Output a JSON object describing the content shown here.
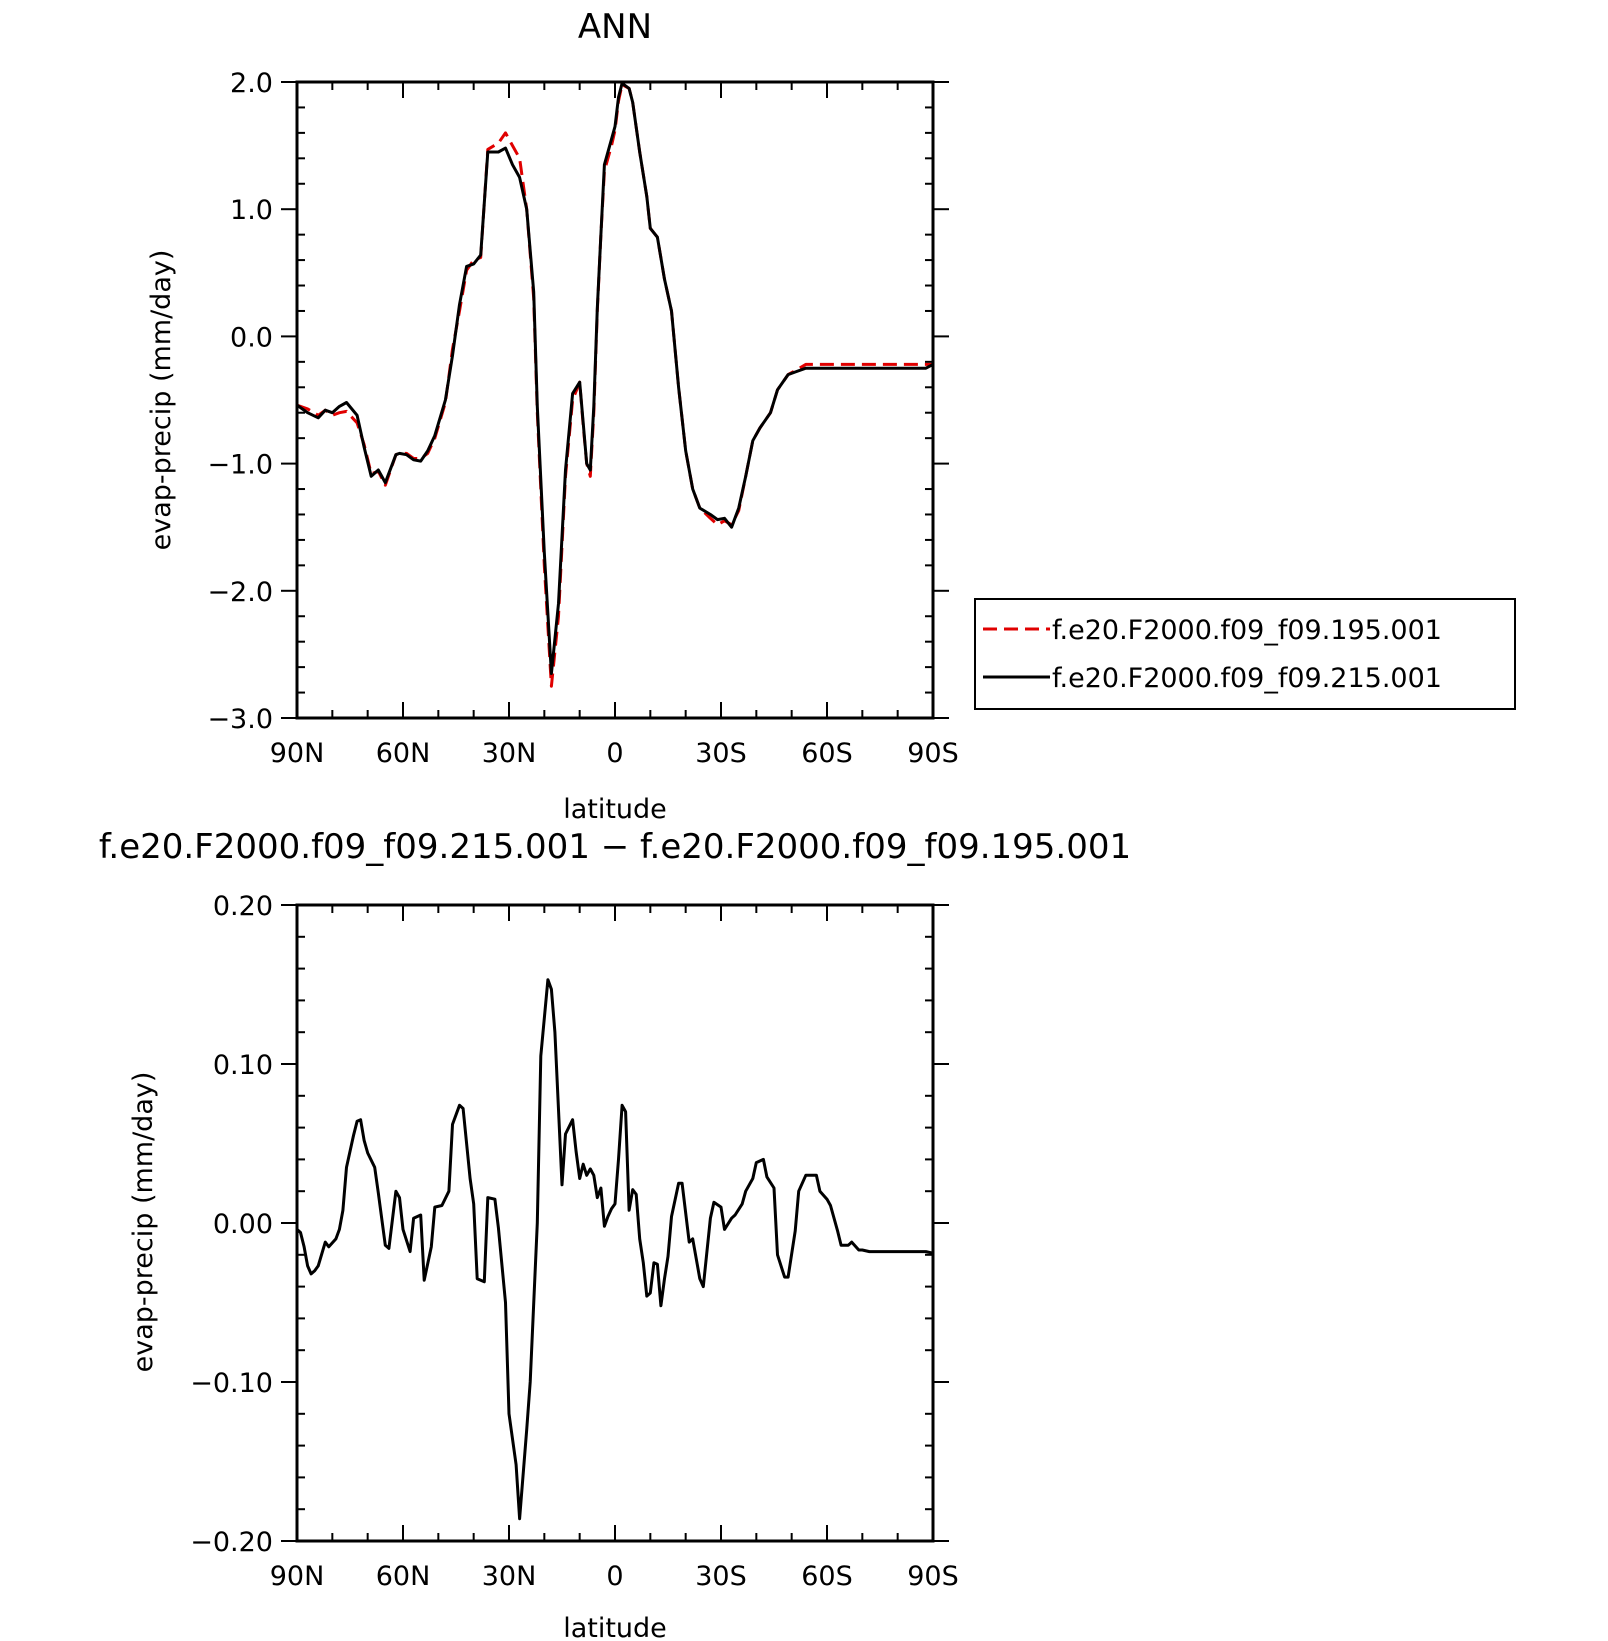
{
  "chart_data": [
    {
      "type": "line",
      "title": "ANN",
      "xlabel": "latitude",
      "ylabel": "evap-precip (mm/day)",
      "xlim": [
        90,
        -90
      ],
      "ylim": [
        -3.0,
        2.0
      ],
      "xticks": [
        90,
        60,
        30,
        0,
        -30,
        -60,
        -90
      ],
      "xtick_labels": [
        "90N",
        "60N",
        "30N",
        "0",
        "30S",
        "60S",
        "90S"
      ],
      "yticks": [
        2.0,
        1.0,
        0.0,
        -1.0,
        -2.0,
        -3.0
      ],
      "ytick_labels": [
        "2.0",
        "1.0",
        "0.0",
        "−1.0",
        "−2.0",
        "−3.0"
      ],
      "grid": false,
      "legend_position": "right",
      "series": [
        {
          "name": "f.e20.F2000.f09_f09.195.001",
          "color": "#e00000",
          "dash": "dashed",
          "x": [
            90,
            87,
            84,
            82,
            80,
            78,
            76,
            73,
            71,
            69,
            67,
            65,
            62,
            61,
            59,
            57,
            55,
            53,
            51,
            48,
            46,
            44,
            42,
            40,
            38,
            36,
            33,
            31,
            29,
            27,
            25,
            23,
            22,
            20,
            18,
            16,
            14,
            12,
            10,
            9,
            8,
            7,
            6,
            5,
            4,
            3,
            1,
            0,
            -1,
            -2,
            -4,
            -5,
            -7,
            -9,
            -10,
            -12,
            -14,
            -16,
            -18,
            -20,
            -22,
            -24,
            -27,
            -29,
            -31,
            -33,
            -35,
            -37,
            -39,
            -41,
            -44,
            -46,
            -49,
            -51,
            -54,
            -57,
            -60,
            -63,
            -65,
            -67,
            -69,
            -71,
            -73,
            -76,
            -78,
            -80,
            -82,
            -84,
            -86,
            -88,
            -90
          ],
          "y": [
            -0.54,
            -0.57,
            -0.62,
            -0.58,
            -0.62,
            -0.6,
            -0.59,
            -0.68,
            -0.85,
            -1.08,
            -1.06,
            -1.17,
            -0.93,
            -0.92,
            -0.92,
            -0.96,
            -0.96,
            -0.92,
            -0.8,
            -0.52,
            -0.1,
            0.2,
            0.52,
            0.6,
            0.62,
            1.47,
            1.52,
            1.6,
            1.5,
            1.4,
            1.0,
            0.3,
            -0.6,
            -1.8,
            -2.75,
            -2.2,
            -1.1,
            -0.5,
            -0.36,
            -0.7,
            -1.0,
            -1.1,
            -0.6,
            0.2,
            0.8,
            1.3,
            1.5,
            1.62,
            1.85,
            1.98,
            1.95,
            1.84,
            1.45,
            1.1,
            0.85,
            0.78,
            0.45,
            0.2,
            -0.4,
            -0.9,
            -1.2,
            -1.35,
            -1.43,
            -1.48,
            -1.45,
            -1.48,
            -1.37,
            -1.1,
            -0.82,
            -0.72,
            -0.6,
            -0.42,
            -0.3,
            -0.27,
            -0.22,
            -0.22,
            -0.22,
            -0.22,
            -0.22,
            -0.22,
            -0.22,
            -0.22,
            -0.22,
            -0.22,
            -0.22,
            -0.22,
            -0.22,
            -0.22,
            -0.22,
            -0.22,
            -0.22
          ]
        },
        {
          "name": "f.e20.F2000.f09_f09.215.001",
          "color": "#000000",
          "dash": "solid",
          "x": [
            90,
            87,
            84,
            82,
            80,
            78,
            76,
            73,
            71,
            69,
            67,
            65,
            62,
            61,
            59,
            57,
            55,
            53,
            51,
            48,
            46,
            44,
            42,
            40,
            38,
            36,
            33,
            31,
            29,
            27,
            25,
            23,
            22,
            20,
            18,
            16,
            14,
            12,
            10,
            9,
            8,
            7,
            6,
            5,
            4,
            3,
            1,
            0,
            -1,
            -2,
            -4,
            -5,
            -7,
            -9,
            -10,
            -12,
            -14,
            -16,
            -18,
            -20,
            -22,
            -24,
            -27,
            -29,
            -31,
            -33,
            -35,
            -37,
            -39,
            -41,
            -44,
            -46,
            -49,
            -51,
            -54,
            -57,
            -60,
            -63,
            -65,
            -67,
            -69,
            -71,
            -73,
            -76,
            -78,
            -80,
            -82,
            -84,
            -86,
            -88,
            -90
          ],
          "y": [
            -0.54,
            -0.6,
            -0.64,
            -0.58,
            -0.6,
            -0.55,
            -0.52,
            -0.62,
            -0.87,
            -1.1,
            -1.05,
            -1.15,
            -0.93,
            -0.92,
            -0.93,
            -0.97,
            -0.98,
            -0.9,
            -0.78,
            -0.5,
            -0.15,
            0.25,
            0.55,
            0.57,
            0.64,
            1.45,
            1.45,
            1.48,
            1.35,
            1.25,
            1.0,
            0.35,
            -0.55,
            -1.7,
            -2.65,
            -2.1,
            -1.05,
            -0.45,
            -0.36,
            -0.68,
            -1.0,
            -1.05,
            -0.55,
            0.22,
            0.8,
            1.35,
            1.55,
            1.65,
            1.88,
            1.99,
            1.95,
            1.84,
            1.45,
            1.1,
            0.85,
            0.78,
            0.45,
            0.2,
            -0.4,
            -0.9,
            -1.2,
            -1.35,
            -1.4,
            -1.44,
            -1.43,
            -1.5,
            -1.35,
            -1.1,
            -0.82,
            -0.72,
            -0.6,
            -0.42,
            -0.3,
            -0.28,
            -0.25,
            -0.25,
            -0.25,
            -0.25,
            -0.25,
            -0.25,
            -0.25,
            -0.25,
            -0.25,
            -0.25,
            -0.25,
            -0.25,
            -0.25,
            -0.25,
            -0.25,
            -0.25,
            -0.22
          ]
        }
      ]
    },
    {
      "type": "line",
      "title": "f.e20.F2000.f09_f09.215.001 − f.e20.F2000.f09_f09.195.001",
      "xlabel": "latitude",
      "ylabel": "evap-precip (mm/day)",
      "xlim": [
        90,
        -90
      ],
      "ylim": [
        -0.2,
        0.2
      ],
      "xticks": [
        90,
        60,
        30,
        0,
        -30,
        -60,
        -90
      ],
      "xtick_labels": [
        "90N",
        "60N",
        "30N",
        "0",
        "30S",
        "60S",
        "90S"
      ],
      "yticks": [
        0.2,
        0.1,
        0.0,
        -0.1,
        -0.2
      ],
      "ytick_labels": [
        "0.20",
        "0.10",
        "0.00",
        "−0.10",
        "−0.20"
      ],
      "grid": false,
      "series": [
        {
          "color": "#000000",
          "dash": "solid",
          "x": [
            90,
            89,
            88,
            87,
            86,
            85,
            84,
            82,
            81,
            79,
            78,
            77,
            76,
            74,
            73,
            72,
            71,
            70,
            68,
            67,
            65,
            64,
            62,
            61,
            60,
            58,
            57,
            55,
            54,
            52,
            51,
            49,
            47,
            46,
            44,
            43,
            41,
            40,
            39,
            37,
            36,
            34,
            33,
            31,
            30,
            28,
            27,
            25,
            24,
            22,
            21,
            19,
            18,
            17,
            15,
            14,
            12,
            11,
            10,
            9,
            8,
            7,
            6,
            5,
            4,
            3,
            2,
            1,
            0,
            -1,
            -2,
            -3,
            -4,
            -5,
            -6,
            -7,
            -8,
            -9,
            -10,
            -11,
            -12,
            -13,
            -14,
            -15,
            -16,
            -18,
            -19,
            -21,
            -22,
            -24,
            -25,
            -27,
            -28,
            -30,
            -31,
            -33,
            -34,
            -36,
            -37,
            -39,
            -40,
            -42,
            -43,
            -45,
            -46,
            -48,
            -49,
            -51,
            -52,
            -54,
            -55,
            -57,
            -58,
            -60,
            -61,
            -63,
            -64,
            -66,
            -67,
            -69,
            -70,
            -72,
            -73,
            -75,
            -76,
            -78,
            -79,
            -81,
            -82,
            -84,
            -85,
            -87,
            -88,
            -90
          ],
          "y": [
            -0.004,
            -0.006,
            -0.015,
            -0.027,
            -0.032,
            -0.03,
            -0.027,
            -0.012,
            -0.015,
            -0.01,
            -0.004,
            0.008,
            0.035,
            0.055,
            0.064,
            0.065,
            0.052,
            0.044,
            0.035,
            0.019,
            -0.014,
            -0.016,
            0.02,
            0.016,
            -0.004,
            -0.018,
            0.003,
            0.005,
            -0.036,
            -0.015,
            0.01,
            0.011,
            0.02,
            0.062,
            0.074,
            0.072,
            0.028,
            0.012,
            -0.035,
            -0.037,
            0.016,
            0.015,
            -0.003,
            -0.05,
            -0.12,
            -0.152,
            -0.186,
            -0.13,
            -0.1,
            0.0,
            0.105,
            0.153,
            0.147,
            0.12,
            0.024,
            0.056,
            0.065,
            0.045,
            0.028,
            0.037,
            0.03,
            0.034,
            0.03,
            0.016,
            0.022,
            -0.002,
            0.004,
            0.009,
            0.012,
            0.04,
            0.074,
            0.07,
            0.008,
            0.021,
            0.018,
            -0.01,
            -0.025,
            -0.046,
            -0.044,
            -0.025,
            -0.026,
            -0.052,
            -0.035,
            -0.021,
            0.004,
            0.025,
            0.025,
            -0.012,
            -0.01,
            -0.035,
            -0.04,
            0.003,
            0.013,
            0.01,
            -0.004,
            0.003,
            0.005,
            0.012,
            0.02,
            0.028,
            0.038,
            0.04,
            0.029,
            0.022,
            -0.02,
            -0.034,
            -0.034,
            -0.005,
            0.02,
            0.03,
            0.03,
            0.03,
            0.02,
            0.015,
            0.011,
            -0.005,
            -0.014,
            -0.014,
            -0.012,
            -0.017,
            -0.017,
            -0.018,
            -0.018,
            -0.018,
            -0.018,
            -0.018,
            -0.018,
            -0.018,
            -0.018,
            -0.018,
            -0.018,
            -0.018,
            -0.018,
            -0.019
          ]
        }
      ]
    }
  ]
}
